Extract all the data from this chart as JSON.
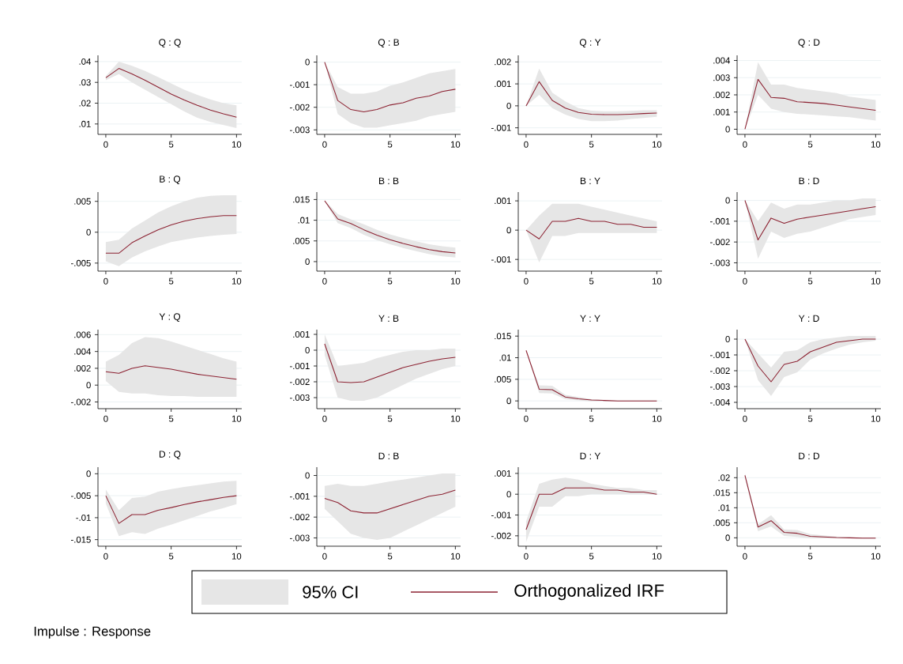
{
  "chart_data": [
    {
      "type": "line",
      "title": "Q : Q",
      "xlim": [
        -0.6,
        10.4
      ],
      "ylim": [
        0.005,
        0.043
      ],
      "xticks": [
        0,
        5,
        10
      ],
      "yticks": [
        {
          "value": 0.01,
          "label": ".01"
        },
        {
          "value": 0.02,
          "label": ".02"
        },
        {
          "value": 0.03,
          "label": ".03"
        },
        {
          "value": 0.04,
          "label": ".04"
        }
      ],
      "grid": "y",
      "legend": "bottom",
      "annotations": [
        "95% CI",
        "Impulse : Response"
      ],
      "x": [
        0,
        1,
        2,
        3,
        4,
        5,
        6,
        7,
        8,
        9,
        10
      ],
      "series": [
        {
          "name": "Orthogonalized IRF",
          "color": "#8c2232",
          "values": [
            0.0322,
            0.0367,
            0.0341,
            0.031,
            0.0277,
            0.0244,
            0.0215,
            0.019,
            0.0167,
            0.0149,
            0.0133
          ],
          "lower": [
            0.031,
            0.034,
            0.03,
            0.0265,
            0.023,
            0.0195,
            0.016,
            0.013,
            0.011,
            0.0095,
            0.008
          ],
          "upper": [
            0.033,
            0.04,
            0.038,
            0.0355,
            0.0325,
            0.0295,
            0.0265,
            0.024,
            0.0218,
            0.02,
            0.019
          ]
        }
      ]
    },
    {
      "type": "line",
      "title": "Q : B",
      "xlim": [
        -0.6,
        10.4
      ],
      "ylim": [
        -0.0032,
        0.0003
      ],
      "xticks": [
        0,
        5,
        10
      ],
      "yticks": [
        {
          "value": -0.003,
          "label": "-.003"
        },
        {
          "value": -0.002,
          "label": "-.002"
        },
        {
          "value": -0.001,
          "label": "-.001"
        },
        {
          "value": 0,
          "label": "0"
        }
      ],
      "grid": "y",
      "x": [
        0,
        1,
        2,
        3,
        4,
        5,
        6,
        7,
        8,
        9,
        10
      ],
      "series": [
        {
          "color": "#8c2232",
          "values": [
            0,
            -0.0017,
            -0.0021,
            -0.0022,
            -0.0021,
            -0.0019,
            -0.0018,
            -0.0016,
            -0.0015,
            -0.0013,
            -0.0012
          ],
          "lower": [
            0,
            -0.0023,
            -0.0027,
            -0.0029,
            -0.0029,
            -0.0028,
            -0.0027,
            -0.0026,
            -0.0024,
            -0.0023,
            -0.0022
          ],
          "upper": [
            0,
            -0.0011,
            -0.0014,
            -0.0014,
            -0.0013,
            -0.00105,
            -0.0009,
            -0.0007,
            -0.0005,
            -0.0004,
            -0.0003
          ]
        }
      ]
    },
    {
      "type": "line",
      "title": "Q : Y",
      "xlim": [
        -0.6,
        10.4
      ],
      "ylim": [
        -0.0013,
        0.0023
      ],
      "xticks": [
        0,
        5,
        10
      ],
      "yticks": [
        {
          "value": -0.001,
          "label": "-.001"
        },
        {
          "value": 0,
          "label": "0"
        },
        {
          "value": 0.001,
          "label": ".001"
        },
        {
          "value": 0.002,
          "label": ".002"
        }
      ],
      "grid": "y",
      "x": [
        0,
        1,
        2,
        3,
        4,
        5,
        6,
        7,
        8,
        9,
        10
      ],
      "series": [
        {
          "color": "#8c2232",
          "values": [
            0,
            0.0011,
            0.00025,
            -0.0001,
            -0.0003,
            -0.00038,
            -0.0004,
            -0.0004,
            -0.00038,
            -0.00035,
            -0.00033
          ],
          "lower": [
            0,
            0.0005,
            -0.0001,
            -0.0004,
            -0.0006,
            -0.0007,
            -0.0007,
            -0.00067,
            -0.0006,
            -0.00055,
            -0.0005
          ],
          "upper": [
            0,
            0.0017,
            0.0006,
            0.0002,
            -0.0001,
            -0.00022,
            -0.00025,
            -0.00025,
            -0.00023,
            -0.0002,
            -0.0002
          ]
        }
      ]
    },
    {
      "type": "line",
      "title": "Q : D",
      "xlim": [
        -0.6,
        10.4
      ],
      "ylim": [
        -0.0003,
        0.0043
      ],
      "xticks": [
        0,
        5,
        10
      ],
      "yticks": [
        {
          "value": 0,
          "label": "0"
        },
        {
          "value": 0.001,
          "label": ".001"
        },
        {
          "value": 0.002,
          "label": ".002"
        },
        {
          "value": 0.003,
          "label": ".003"
        },
        {
          "value": 0.004,
          "label": ".004"
        }
      ],
      "grid": "y",
      "x": [
        0,
        1,
        2,
        3,
        4,
        5,
        6,
        7,
        8,
        9,
        10
      ],
      "series": [
        {
          "color": "#8c2232",
          "values": [
            0,
            0.0029,
            0.00185,
            0.0018,
            0.0016,
            0.00155,
            0.0015,
            0.0014,
            0.0013,
            0.0012,
            0.0011
          ],
          "lower": [
            0,
            0.002,
            0.0012,
            0.001,
            0.0009,
            0.00085,
            0.0008,
            0.00075,
            0.0007,
            0.0006,
            0.0005
          ],
          "upper": [
            0,
            0.0039,
            0.0026,
            0.0026,
            0.0024,
            0.0023,
            0.0022,
            0.0021,
            0.0019,
            0.0018,
            0.0017
          ]
        }
      ]
    },
    {
      "type": "line",
      "title": "B : Q",
      "xlim": [
        -0.6,
        10.4
      ],
      "ylim": [
        -0.0063,
        0.0065
      ],
      "xticks": [
        0,
        5,
        10
      ],
      "yticks": [
        {
          "value": -0.005,
          "label": "-.005"
        },
        {
          "value": 0,
          "label": "0"
        },
        {
          "value": 0.005,
          "label": ".005"
        }
      ],
      "grid": "y",
      "x": [
        0,
        1,
        2,
        3,
        4,
        5,
        6,
        7,
        8,
        9,
        10
      ],
      "series": [
        {
          "color": "#8c2232",
          "values": [
            -0.0034,
            -0.0034,
            -0.0017,
            -0.0006,
            0.0004,
            0.0012,
            0.0018,
            0.0022,
            0.0025,
            0.0027,
            0.0027
          ],
          "lower": [
            -0.0047,
            -0.0055,
            -0.0041,
            -0.0031,
            -0.0023,
            -0.0016,
            -0.0012,
            -0.00085,
            -0.0006,
            -0.0004,
            -0.0003
          ],
          "upper": [
            -0.0016,
            -0.0012,
            0.0006,
            0.0019,
            0.0032,
            0.0042,
            0.005,
            0.0056,
            0.0059,
            0.006,
            0.006
          ]
        }
      ]
    },
    {
      "type": "line",
      "title": "B : B",
      "xlim": [
        -0.6,
        10.4
      ],
      "ylim": [
        -0.0023,
        0.0168
      ],
      "xticks": [
        0,
        5,
        10
      ],
      "yticks": [
        {
          "value": 0,
          "label": "0"
        },
        {
          "value": 0.005,
          "label": ".005"
        },
        {
          "value": 0.01,
          "label": ".01"
        },
        {
          "value": 0.015,
          "label": ".015"
        }
      ],
      "grid": "y",
      "x": [
        0,
        1,
        2,
        3,
        4,
        5,
        6,
        7,
        8,
        9,
        10
      ],
      "series": [
        {
          "color": "#8c2232",
          "values": [
            0.0147,
            0.0103,
            0.0092,
            0.0077,
            0.0064,
            0.0053,
            0.0044,
            0.0036,
            0.0029,
            0.0024,
            0.0021
          ],
          "lower": [
            0.0146,
            0.0093,
            0.0081,
            0.0065,
            0.0052,
            0.0042,
            0.0033,
            0.0025,
            0.0018,
            0.0013,
            0.001
          ],
          "upper": [
            0.0148,
            0.0115,
            0.0102,
            0.009,
            0.0077,
            0.0066,
            0.0057,
            0.0049,
            0.0042,
            0.0037,
            0.0034
          ]
        }
      ]
    },
    {
      "type": "line",
      "title": "B : Y",
      "xlim": [
        -0.6,
        10.4
      ],
      "ylim": [
        -0.0014,
        0.0013
      ],
      "xticks": [
        0,
        5,
        10
      ],
      "yticks": [
        {
          "value": -0.001,
          "label": "-.001"
        },
        {
          "value": 0,
          "label": "0"
        },
        {
          "value": 0.001,
          "label": ".001"
        }
      ],
      "grid": "y",
      "x": [
        0,
        1,
        2,
        3,
        4,
        5,
        6,
        7,
        8,
        9,
        10
      ],
      "series": [
        {
          "color": "#8c2232",
          "values": [
            0,
            -0.0003,
            0.0003,
            0.0003,
            0.0004,
            0.0003,
            0.0003,
            0.0002,
            0.0002,
            0.0001,
            0.0001
          ],
          "lower": [
            0,
            -0.0011,
            -0.0002,
            -0.0002,
            -0.0001,
            -0.0001,
            -0.0001,
            -0.0001,
            -0.0001,
            -0.0001,
            -0.0001
          ],
          "upper": [
            0,
            0.0005,
            0.0009,
            0.0009,
            0.0009,
            0.0008,
            0.0007,
            0.0006,
            0.0005,
            0.0004,
            0.0003
          ]
        }
      ]
    },
    {
      "type": "line",
      "title": "B : D",
      "xlim": [
        -0.6,
        10.4
      ],
      "ylim": [
        -0.0034,
        0.0004
      ],
      "xticks": [
        0,
        5,
        10
      ],
      "yticks": [
        {
          "value": -0.003,
          "label": "-.003"
        },
        {
          "value": -0.002,
          "label": "-.002"
        },
        {
          "value": -0.001,
          "label": "-.001"
        },
        {
          "value": 0,
          "label": "0"
        }
      ],
      "grid": "y",
      "x": [
        0,
        1,
        2,
        3,
        4,
        5,
        6,
        7,
        8,
        9,
        10
      ],
      "series": [
        {
          "color": "#8c2232",
          "values": [
            0,
            -0.0019,
            -0.00085,
            -0.0011,
            -0.0009,
            -0.0008,
            -0.0007,
            -0.0006,
            -0.0005,
            -0.0004,
            -0.0003
          ],
          "lower": [
            0,
            -0.0028,
            -0.0015,
            -0.0018,
            -0.0016,
            -0.0015,
            -0.0013,
            -0.0011,
            -0.0009,
            -0.0008,
            -0.0007
          ],
          "upper": [
            0,
            -0.001,
            -0.0001,
            -0.0004,
            -0.0002,
            -0.0002,
            -0.0001,
            0,
            0,
            0.0001,
            0.0001
          ]
        }
      ]
    },
    {
      "type": "line",
      "title": "Y : Q",
      "xlim": [
        -0.6,
        10.4
      ],
      "ylim": [
        -0.0028,
        0.0066
      ],
      "xticks": [
        0,
        5,
        10
      ],
      "yticks": [
        {
          "value": -0.002,
          "label": "-.002"
        },
        {
          "value": 0,
          "label": "0"
        },
        {
          "value": 0.002,
          "label": ".002"
        },
        {
          "value": 0.004,
          "label": ".004"
        },
        {
          "value": 0.006,
          "label": ".006"
        }
      ],
      "grid": "y",
      "x": [
        0,
        1,
        2,
        3,
        4,
        5,
        6,
        7,
        8,
        9,
        10
      ],
      "series": [
        {
          "color": "#8c2232",
          "values": [
            0.0016,
            0.0014,
            0.002,
            0.0023,
            0.0021,
            0.0019,
            0.0016,
            0.0013,
            0.0011,
            0.0009,
            0.0007
          ],
          "lower": [
            0.0005,
            -0.0008,
            -0.001,
            -0.001,
            -0.0012,
            -0.0013,
            -0.0013,
            -0.0014,
            -0.0014,
            -0.0014,
            -0.0014
          ],
          "upper": [
            0.0028,
            0.0036,
            0.005,
            0.0057,
            0.0056,
            0.0052,
            0.0047,
            0.0042,
            0.0037,
            0.0032,
            0.0028
          ]
        }
      ]
    },
    {
      "type": "line",
      "title": "Y : B",
      "xlim": [
        -0.6,
        10.4
      ],
      "ylim": [
        -0.0037,
        0.0013
      ],
      "xticks": [
        0,
        5,
        10
      ],
      "yticks": [
        {
          "value": -0.003,
          "label": "-.003"
        },
        {
          "value": -0.002,
          "label": "-.002"
        },
        {
          "value": -0.001,
          "label": "-.001"
        },
        {
          "value": 0,
          "label": "0"
        },
        {
          "value": 0.001,
          "label": ".001"
        }
      ],
      "grid": "y",
      "x": [
        0,
        1,
        2,
        3,
        4,
        5,
        6,
        7,
        8,
        9,
        10
      ],
      "series": [
        {
          "color": "#8c2232",
          "values": [
            0.0004,
            -0.002,
            -0.00205,
            -0.002,
            -0.0017,
            -0.0014,
            -0.0011,
            -0.0009,
            -0.0007,
            -0.00055,
            -0.00045
          ],
          "lower": [
            -0.0003,
            -0.003,
            -0.0032,
            -0.0032,
            -0.003,
            -0.0026,
            -0.0022,
            -0.0018,
            -0.0015,
            -0.0012,
            -0.001
          ],
          "upper": [
            0.001,
            -0.001,
            -0.0009,
            -0.0008,
            -0.0005,
            -0.0003,
            -0.0001,
            0,
            0,
            0.0001,
            0.0001
          ]
        }
      ]
    },
    {
      "type": "line",
      "title": "Y : Y",
      "xlim": [
        -0.6,
        10.4
      ],
      "ylim": [
        -0.0018,
        0.0165
      ],
      "xticks": [
        0,
        5,
        10
      ],
      "yticks": [
        {
          "value": 0,
          "label": "0"
        },
        {
          "value": 0.005,
          "label": ".005"
        },
        {
          "value": 0.01,
          "label": ".01"
        },
        {
          "value": 0.015,
          "label": ".015"
        }
      ],
      "grid": "y",
      "x": [
        0,
        1,
        2,
        3,
        4,
        5,
        6,
        7,
        8,
        9,
        10
      ],
      "series": [
        {
          "color": "#8c2232",
          "values": [
            0.0117,
            0.0027,
            0.0026,
            0.0009,
            0.0005,
            0.0002,
            0.0001,
            0,
            0,
            0,
            0
          ],
          "lower": [
            0.0117,
            0.0018,
            0.0017,
            0.0004,
            0.0001,
            -0.0001,
            -0.0001,
            -0.0001,
            -0.0001,
            -0.0001,
            -0.0001
          ],
          "upper": [
            0.0117,
            0.0036,
            0.0035,
            0.0014,
            0.0009,
            0.0004,
            0.0002,
            0.0001,
            0.0001,
            0.0001,
            0.0001
          ]
        }
      ]
    },
    {
      "type": "line",
      "title": "Y : D",
      "xlim": [
        -0.6,
        10.4
      ],
      "ylim": [
        -0.0044,
        0.0006
      ],
      "xticks": [
        0,
        5,
        10
      ],
      "yticks": [
        {
          "value": -0.004,
          "label": "-.004"
        },
        {
          "value": -0.003,
          "label": "-.003"
        },
        {
          "value": -0.002,
          "label": "-.002"
        },
        {
          "value": -0.001,
          "label": "-.001"
        },
        {
          "value": 0,
          "label": "0"
        }
      ],
      "grid": "y",
      "x": [
        0,
        1,
        2,
        3,
        4,
        5,
        6,
        7,
        8,
        9,
        10
      ],
      "series": [
        {
          "color": "#8c2232",
          "values": [
            0,
            -0.0017,
            -0.0027,
            -0.0016,
            -0.0014,
            -0.0008,
            -0.0005,
            -0.0002,
            -0.0001,
            0,
            0
          ],
          "lower": [
            0,
            -0.0026,
            -0.0036,
            -0.0024,
            -0.0021,
            -0.0013,
            -0.0009,
            -0.0006,
            -0.00035,
            -0.0002,
            -0.0001
          ],
          "upper": [
            0,
            -0.0009,
            -0.0018,
            -0.0008,
            -0.0007,
            -0.0002,
            0,
            0.0001,
            0.0002,
            0.0002,
            0.0002
          ]
        }
      ]
    },
    {
      "type": "line",
      "title": "D : Q",
      "xlim": [
        -0.6,
        10.4
      ],
      "ylim": [
        -0.0165,
        0.0015
      ],
      "xticks": [
        0,
        5,
        10
      ],
      "yticks": [
        {
          "value": -0.015,
          "label": "-.015"
        },
        {
          "value": -0.01,
          "label": "-.01"
        },
        {
          "value": -0.005,
          "label": "-.005"
        },
        {
          "value": 0,
          "label": "0"
        }
      ],
      "grid": "y",
      "x": [
        0,
        1,
        2,
        3,
        4,
        5,
        6,
        7,
        8,
        9,
        10
      ],
      "series": [
        {
          "color": "#8c2232",
          "values": [
            -0.005,
            -0.0113,
            -0.0093,
            -0.0093,
            -0.0083,
            -0.0077,
            -0.007,
            -0.0064,
            -0.0059,
            -0.0054,
            -0.005
          ],
          "lower": [
            -0.0068,
            -0.0142,
            -0.0133,
            -0.0137,
            -0.0125,
            -0.0116,
            -0.0106,
            -0.0096,
            -0.0086,
            -0.0078,
            -0.0069
          ],
          "upper": [
            -0.0036,
            -0.0083,
            -0.0055,
            -0.0052,
            -0.0041,
            -0.0035,
            -0.003,
            -0.0026,
            -0.0022,
            -0.0018,
            -0.0016
          ]
        }
      ]
    },
    {
      "type": "line",
      "title": "D : B",
      "xlim": [
        -0.6,
        10.4
      ],
      "ylim": [
        -0.0034,
        0.0004
      ],
      "xticks": [
        0,
        5,
        10
      ],
      "yticks": [
        {
          "value": -0.003,
          "label": "-.003"
        },
        {
          "value": -0.002,
          "label": "-.002"
        },
        {
          "value": -0.001,
          "label": "-.001"
        },
        {
          "value": 0,
          "label": "0"
        }
      ],
      "grid": "y",
      "x": [
        0,
        1,
        2,
        3,
        4,
        5,
        6,
        7,
        8,
        9,
        10
      ],
      "series": [
        {
          "color": "#8c2232",
          "values": [
            -0.0011,
            -0.0013,
            -0.0017,
            -0.0018,
            -0.0018,
            -0.0016,
            -0.0014,
            -0.0012,
            -0.001,
            -0.0009,
            -0.0007
          ],
          "lower": [
            -0.0016,
            -0.0022,
            -0.0028,
            -0.003,
            -0.0031,
            -0.003,
            -0.0027,
            -0.0024,
            -0.0021,
            -0.0018,
            -0.0015
          ],
          "upper": [
            -0.0005,
            -0.0004,
            -0.0005,
            -0.0005,
            -0.0004,
            -0.00028,
            -0.0002,
            -0.0001,
            0,
            0.0001,
            0.0001
          ]
        }
      ]
    },
    {
      "type": "line",
      "title": "D : Y",
      "xlim": [
        -0.6,
        10.4
      ],
      "ylim": [
        -0.0025,
        0.0013
      ],
      "xticks": [
        0,
        5,
        10
      ],
      "yticks": [
        {
          "value": -0.002,
          "label": "-.002"
        },
        {
          "value": -0.001,
          "label": "-.001"
        },
        {
          "value": 0,
          "label": "0"
        },
        {
          "value": 0.001,
          "label": ".001"
        }
      ],
      "grid": "y",
      "x": [
        0,
        1,
        2,
        3,
        4,
        5,
        6,
        7,
        8,
        9,
        10
      ],
      "series": [
        {
          "color": "#8c2232",
          "values": [
            -0.0017,
            0,
            0,
            0.0003,
            0.0003,
            0.0003,
            0.0002,
            0.0002,
            0.0001,
            0.0001,
            0
          ],
          "lower": [
            -0.0023,
            -0.0006,
            -0.0006,
            -0.0001,
            -0.0001,
            0,
            0,
            0,
            0,
            0,
            0
          ],
          "upper": [
            -0.0013,
            0.0005,
            0.0007,
            0.0008,
            0.0007,
            0.0005,
            0.0004,
            0.0003,
            0.0003,
            0.0002,
            0.0002
          ]
        }
      ]
    },
    {
      "type": "line",
      "title": "D : D",
      "xlim": [
        -0.6,
        10.4
      ],
      "ylim": [
        -0.0028,
        0.0235
      ],
      "xticks": [
        0,
        5,
        10
      ],
      "yticks": [
        {
          "value": 0,
          "label": "0"
        },
        {
          "value": 0.005,
          "label": ".005"
        },
        {
          "value": 0.01,
          "label": ".01"
        },
        {
          "value": 0.015,
          "label": ".015"
        },
        {
          "value": 0.02,
          "label": ".02"
        }
      ],
      "grid": "y",
      "x": [
        0,
        1,
        2,
        3,
        4,
        5,
        6,
        7,
        8,
        9,
        10
      ],
      "series": [
        {
          "color": "#8c2232",
          "values": [
            0.0208,
            0.0036,
            0.0057,
            0.0018,
            0.0015,
            0.0005,
            0.0003,
            0.0001,
            0,
            -0.0001,
            -0.0001
          ],
          "lower": [
            0.02,
            0.0022,
            0.0038,
            0.0006,
            0.0003,
            -0.0002,
            -0.0002,
            -0.0002,
            -0.0002,
            -0.0003,
            -0.0003
          ],
          "upper": [
            0.0215,
            0.0045,
            0.0075,
            0.0028,
            0.0026,
            0.0012,
            0.0008,
            0.0004,
            0.0002,
            0.0001,
            0.0001
          ]
        }
      ]
    }
  ]
}
